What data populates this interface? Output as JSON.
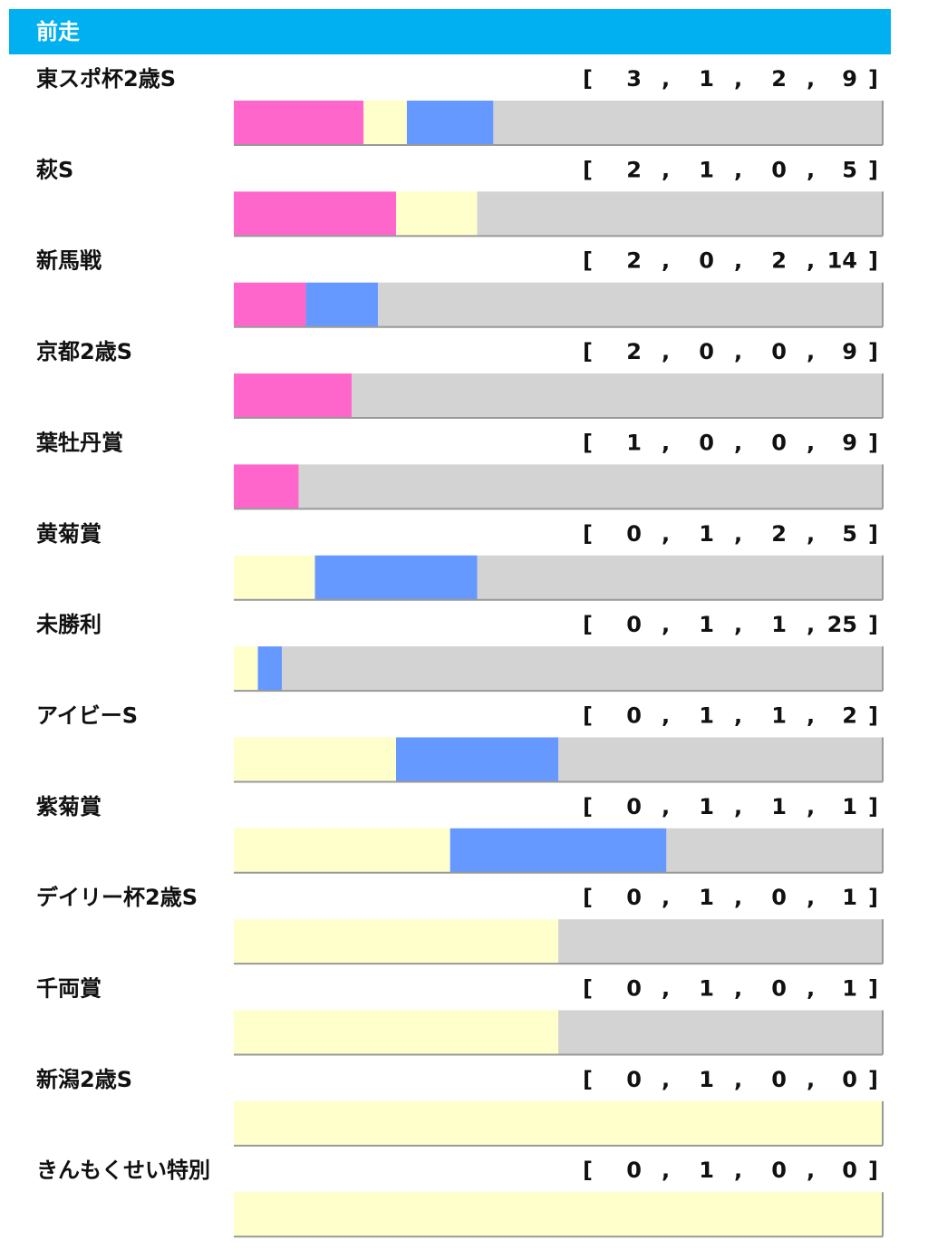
{
  "chart_data": {
    "type": "stacked_bar_100",
    "title": "前走",
    "categories": [
      "東スポ杯2歳S",
      "萩S",
      "新馬戦",
      "京都2歳S",
      "葉牡丹賞",
      "黄菊賞",
      "未勝利",
      "アイビーS",
      "紫菊賞",
      "デイリー杯2歳S",
      "千両賞",
      "新潟2歳S",
      "きんもくせい特別"
    ],
    "record_format": {
      "open": "[",
      "separator": ",",
      "close": "]"
    },
    "series": [
      {
        "color": "#ff66cc",
        "values": [
          3,
          2,
          2,
          2,
          1,
          0,
          0,
          0,
          0,
          0,
          0,
          0,
          0
        ]
      },
      {
        "color": "#ffffcc",
        "values": [
          1,
          1,
          0,
          0,
          0,
          1,
          1,
          1,
          1,
          1,
          1,
          1,
          1
        ]
      },
      {
        "color": "#6699ff",
        "values": [
          2,
          0,
          2,
          0,
          0,
          2,
          1,
          1,
          1,
          0,
          0,
          0,
          0
        ]
      },
      {
        "color": "#d3d3d3",
        "values": [
          9,
          5,
          14,
          9,
          9,
          5,
          25,
          2,
          1,
          1,
          1,
          0,
          0
        ]
      }
    ]
  }
}
